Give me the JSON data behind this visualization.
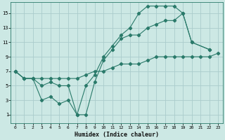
{
  "xlabel": "Humidex (Indice chaleur)",
  "bg_color": "#cce8e4",
  "grid_color": "#aacccc",
  "line_color": "#2a7a6a",
  "xlim": [
    -0.5,
    23.5
  ],
  "ylim": [
    -0.2,
    16.5
  ],
  "xticks": [
    0,
    1,
    2,
    3,
    4,
    5,
    6,
    7,
    8,
    9,
    10,
    11,
    12,
    13,
    14,
    15,
    16,
    17,
    18,
    19,
    20,
    21,
    22,
    23
  ],
  "yticks": [
    1,
    3,
    5,
    7,
    9,
    11,
    13,
    15
  ],
  "line1_x": [
    0,
    1,
    2,
    3,
    4,
    5,
    6,
    7,
    8,
    9,
    10,
    11,
    12,
    13,
    14,
    15,
    16,
    17,
    18,
    19,
    20,
    21,
    22,
    23
  ],
  "line1_y": [
    7,
    6,
    6,
    6,
    6,
    6,
    6,
    6,
    6.5,
    7,
    7,
    7.5,
    8,
    8,
    8,
    8.5,
    9,
    9,
    9,
    9,
    9,
    9,
    9,
    9.5
  ],
  "line2_x": [
    0,
    1,
    2,
    3,
    4,
    5,
    6,
    7,
    8,
    9,
    10,
    11,
    12,
    13,
    14,
    15,
    16,
    17,
    18,
    19,
    20,
    22
  ],
  "line2_y": [
    7,
    6,
    6,
    5,
    5.5,
    5,
    5,
    1,
    1,
    5.5,
    8.5,
    10,
    11.5,
    12,
    12,
    13,
    13.5,
    14,
    14,
    15,
    11,
    10
  ],
  "line3_x": [
    0,
    1,
    2,
    3,
    4,
    5,
    6,
    7,
    8,
    9,
    10,
    11,
    12,
    13,
    14,
    15,
    16,
    17,
    18,
    19,
    20,
    22
  ],
  "line3_y": [
    7,
    6,
    6,
    3,
    3.5,
    2.5,
    3,
    1,
    5,
    6.5,
    9,
    10.5,
    12,
    13,
    15,
    16,
    16,
    16,
    16,
    15,
    11,
    10
  ]
}
